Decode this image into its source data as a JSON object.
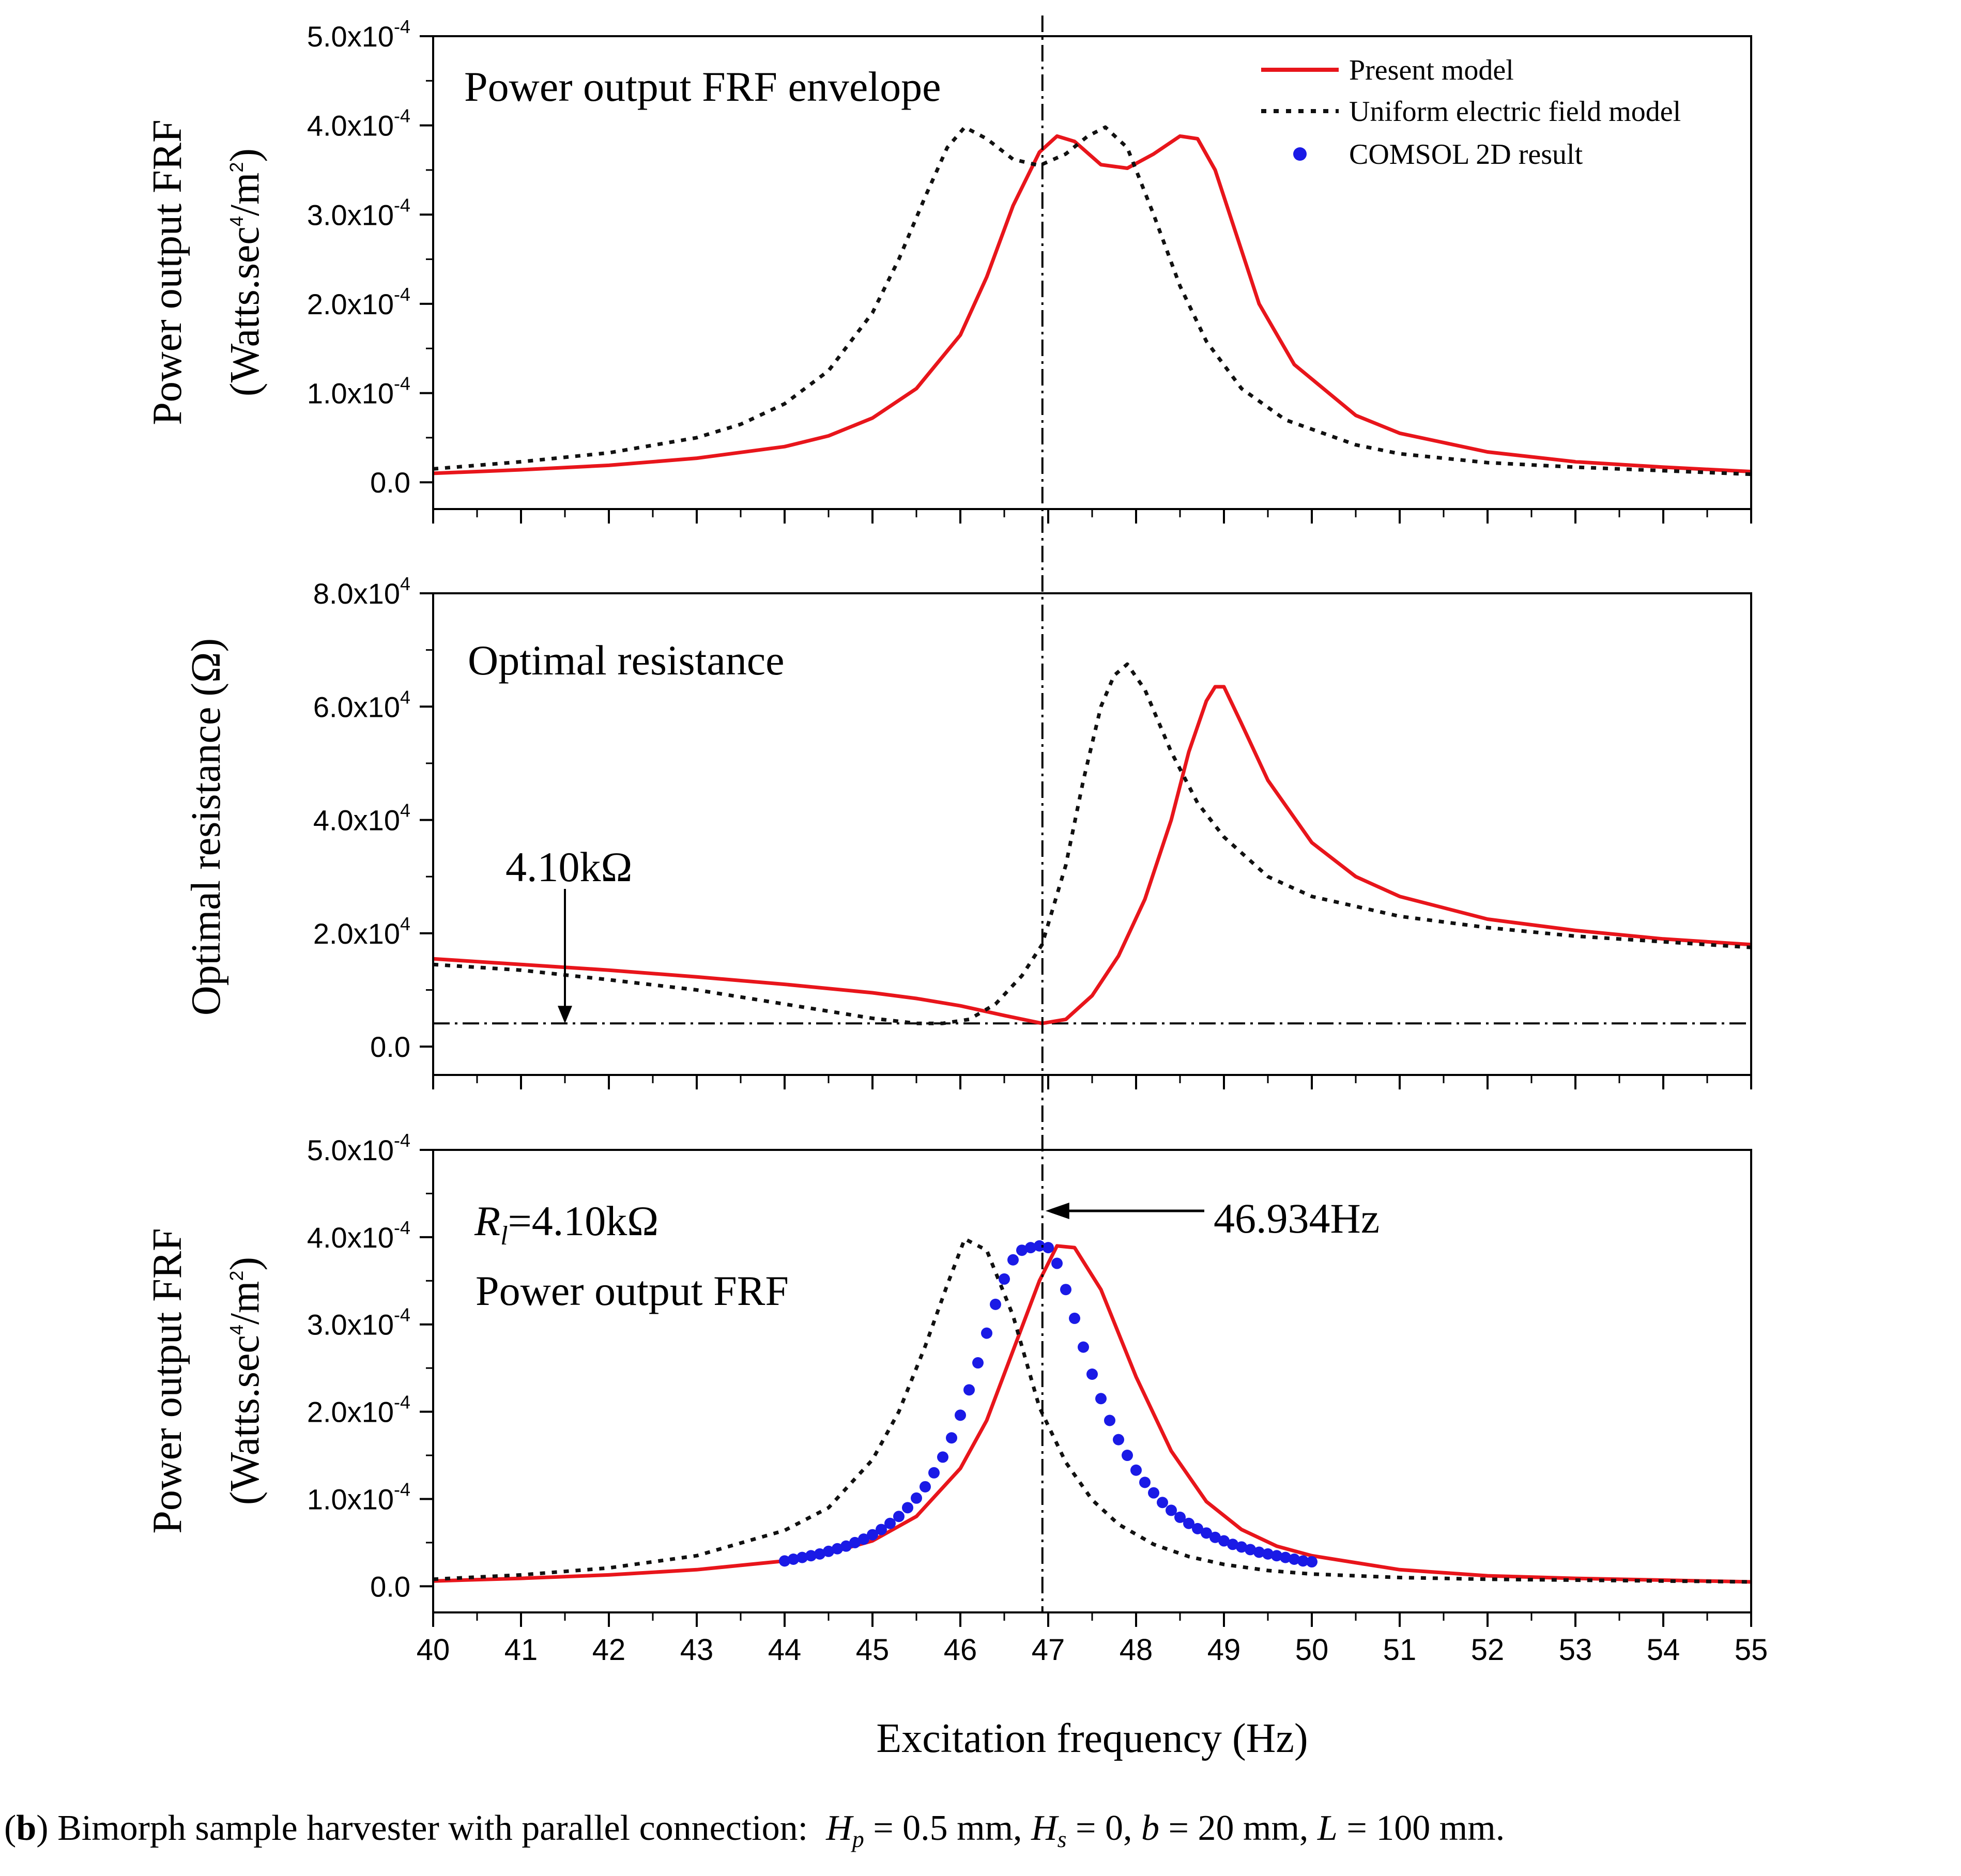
{
  "caption": {
    "label_open": "(",
    "label_letter": "b",
    "label_close": ")",
    "text": "Bimorph sample harvester with parallel connection:",
    "params": [
      {
        "sym": "H",
        "sub": "p",
        "value": " = 0.5 mm,"
      },
      {
        "sym": "H",
        "sub": "s",
        "value": " = 0,"
      },
      {
        "sym": "b",
        "sub": "",
        "value": " = 20 mm,"
      },
      {
        "sym": "L",
        "sub": "",
        "value": " = 100 mm."
      }
    ]
  },
  "legend": {
    "present": "Present model",
    "uniform": "Uniform electric field model",
    "comsol": "COMSOL 2D result"
  },
  "colors": {
    "present": "#e8151b",
    "uniform": "#111111",
    "comsol": "#1a1ae6",
    "axis": "#000000"
  },
  "x_axis": {
    "label": "Excitation frequency (Hz)",
    "range": [
      40,
      55
    ],
    "ticks": [
      "40",
      "41",
      "42",
      "43",
      "44",
      "45",
      "46",
      "47",
      "48",
      "49",
      "50",
      "51",
      "52",
      "53",
      "54",
      "55"
    ]
  },
  "panel1": {
    "annotation": "Power output FRF envelope",
    "ylabel_line1": "Power output FRF",
    "ylabel_line2_a": "(Watts.sec",
    "ylabel_line2_sup1": "4",
    "ylabel_line2_b": "/m",
    "ylabel_line2_sup2": "2",
    "ylabel_line2_c": ")",
    "ticks": [
      {
        "value": 0,
        "base": "0.0",
        "exp": ""
      },
      {
        "value": 0.0001,
        "base": "1.0x10",
        "exp": "-4"
      },
      {
        "value": 0.0002,
        "base": "2.0x10",
        "exp": "-4"
      },
      {
        "value": 0.0003,
        "base": "3.0x10",
        "exp": "-4"
      },
      {
        "value": 0.0004,
        "base": "4.0x10",
        "exp": "-4"
      },
      {
        "value": 0.0005,
        "base": "5.0x10",
        "exp": "-4"
      }
    ]
  },
  "panel2": {
    "annotation": "Optimal resistance",
    "ylabel": "Optimal resistance (Ω)",
    "arrow_label": "4.10kΩ",
    "ticks": [
      {
        "value": 0,
        "base": "0.0",
        "exp": ""
      },
      {
        "value": 20000,
        "base": "2.0x10",
        "exp": "4"
      },
      {
        "value": 40000,
        "base": "4.0x10",
        "exp": "4"
      },
      {
        "value": 60000,
        "base": "6.0x10",
        "exp": "4"
      },
      {
        "value": 80000,
        "base": "8.0x10",
        "exp": "4"
      }
    ]
  },
  "panel3": {
    "annotation_r": "R",
    "annotation_sub": "l",
    "annotation_rest": "=4.10kΩ",
    "annotation2": "Power output FRF",
    "arrow_label": "46.934Hz",
    "ylabel_line1": "Power output FRF",
    "ylabel_line2_a": "(Watts.sec",
    "ylabel_line2_sup1": "4",
    "ylabel_line2_b": "/m",
    "ylabel_line2_sup2": "2",
    "ylabel_line2_c": ")",
    "ticks": [
      {
        "value": 0,
        "base": "0.0",
        "exp": ""
      },
      {
        "value": 0.0001,
        "base": "1.0x10",
        "exp": "-4"
      },
      {
        "value": 0.0002,
        "base": "2.0x10",
        "exp": "-4"
      },
      {
        "value": 0.0003,
        "base": "3.0x10",
        "exp": "-4"
      },
      {
        "value": 0.0004,
        "base": "4.0x10",
        "exp": "-4"
      },
      {
        "value": 0.0005,
        "base": "5.0x10",
        "exp": "-4"
      }
    ]
  },
  "chart_data": [
    {
      "type": "line",
      "title": "Power output FRF envelope",
      "xlabel": "Excitation frequency (Hz)",
      "ylabel": "Power output FRF (Watts.sec4/m2)",
      "xlim": [
        40,
        55
      ],
      "ylim": [
        -3e-05,
        0.0005
      ],
      "vline": 46.934,
      "series": [
        {
          "name": "Present model",
          "style": "solid-red",
          "x": [
            40,
            41,
            42,
            43,
            44,
            44.5,
            45,
            45.5,
            46,
            46.3,
            46.6,
            46.9,
            47.1,
            47.3,
            47.6,
            47.9,
            48.2,
            48.5,
            48.7,
            48.9,
            49.1,
            49.4,
            49.8,
            50.5,
            51,
            52,
            53,
            54,
            55
          ],
          "y": [
            1e-05,
            1.4e-05,
            1.9e-05,
            2.7e-05,
            4e-05,
            5.2e-05,
            7.2e-05,
            0.000105,
            0.000165,
            0.00023,
            0.00031,
            0.00037,
            0.000388,
            0.000382,
            0.000356,
            0.000352,
            0.000368,
            0.000388,
            0.000385,
            0.00035,
            0.00029,
            0.0002,
            0.000132,
            7.5e-05,
            5.5e-05,
            3.4e-05,
            2.3e-05,
            1.7e-05,
            1.2e-05
          ]
        },
        {
          "name": "Uniform electric field model",
          "style": "dotted-black",
          "x": [
            40,
            41,
            42,
            43,
            43.5,
            44,
            44.5,
            45,
            45.3,
            45.6,
            45.85,
            46.05,
            46.3,
            46.6,
            46.9,
            47.2,
            47.45,
            47.65,
            47.9,
            48.2,
            48.5,
            48.8,
            49.2,
            49.7,
            50.5,
            51,
            52,
            53,
            54,
            55
          ],
          "y": [
            1.5e-05,
            2.3e-05,
            3.3e-05,
            5e-05,
            6.5e-05,
            8.8e-05,
            0.000125,
            0.00019,
            0.00025,
            0.00032,
            0.000375,
            0.000398,
            0.000385,
            0.000362,
            0.000355,
            0.000368,
            0.000388,
            0.000398,
            0.000375,
            0.0003,
            0.00022,
            0.000158,
            0.000105,
            7e-05,
            4.2e-05,
            3.2e-05,
            2.2e-05,
            1.7e-05,
            1.3e-05,
            9e-06
          ]
        }
      ]
    },
    {
      "type": "line",
      "title": "Optimal resistance",
      "xlabel": "Excitation frequency (Hz)",
      "ylabel": "Optimal resistance (Ω)",
      "xlim": [
        40,
        55
      ],
      "ylim": [
        -5000,
        80000
      ],
      "vline": 46.934,
      "hline": 4100,
      "annotation_x": 41.5,
      "series": [
        {
          "name": "Present model",
          "style": "solid-red",
          "x": [
            40,
            41,
            42,
            43,
            44,
            45,
            45.5,
            46,
            46.5,
            46.93,
            47.2,
            47.5,
            47.8,
            48.1,
            48.4,
            48.6,
            48.8,
            48.9,
            49.0,
            49.2,
            49.5,
            50,
            50.5,
            51,
            52,
            53,
            54,
            55
          ],
          "y": [
            15500,
            14500,
            13500,
            12300,
            11000,
            9500,
            8500,
            7200,
            5500,
            4100,
            4800,
            9000,
            16000,
            26000,
            40000,
            52000,
            61000,
            63500,
            63500,
            57000,
            47000,
            36000,
            30000,
            26500,
            22500,
            20500,
            19000,
            18000
          ]
        },
        {
          "name": "Uniform electric field model",
          "style": "dotted-black",
          "x": [
            40,
            41,
            42,
            43,
            44,
            45,
            45.5,
            45.8,
            46.1,
            46.4,
            46.7,
            46.93,
            47.2,
            47.4,
            47.6,
            47.75,
            47.9,
            48.1,
            48.4,
            48.7,
            49.0,
            49.5,
            50,
            51,
            52,
            53,
            54,
            55
          ],
          "y": [
            14500,
            13500,
            11800,
            10000,
            7500,
            5000,
            4100,
            4100,
            4800,
            7500,
            12500,
            18000,
            32000,
            47000,
            60000,
            65500,
            67500,
            63000,
            52000,
            43000,
            37000,
            30000,
            26500,
            23000,
            21000,
            19500,
            18500,
            17500
          ]
        }
      ]
    },
    {
      "type": "line",
      "title": "Power output FRF",
      "xlabel": "Excitation frequency (Hz)",
      "ylabel": "Power output FRF (Watts.sec4/m2)",
      "xlim": [
        40,
        55
      ],
      "ylim": [
        -3e-05,
        0.0005
      ],
      "vline": 46.934,
      "series": [
        {
          "name": "Present model",
          "style": "solid-red",
          "x": [
            40,
            41,
            42,
            43,
            44,
            44.5,
            45,
            45.5,
            46,
            46.3,
            46.6,
            46.9,
            47.1,
            47.3,
            47.6,
            48,
            48.4,
            48.8,
            49.2,
            49.6,
            50,
            51,
            52,
            53,
            54,
            55
          ],
          "y": [
            6e-06,
            9e-06,
            1.3e-05,
            1.9e-05,
            2.9e-05,
            3.8e-05,
            5.2e-05,
            8e-05,
            0.000135,
            0.00019,
            0.00027,
            0.00035,
            0.00039,
            0.000388,
            0.00034,
            0.00024,
            0.000155,
            9.7e-05,
            6.5e-05,
            4.6e-05,
            3.5e-05,
            1.9e-05,
            1.2e-05,
            9e-06,
            7e-06,
            5e-06
          ]
        },
        {
          "name": "Uniform electric field model",
          "style": "dotted-black",
          "x": [
            40,
            41,
            42,
            43,
            44,
            44.5,
            45,
            45.3,
            45.6,
            45.85,
            46.05,
            46.3,
            46.6,
            46.9,
            47.2,
            47.5,
            47.8,
            48.2,
            48.6,
            49,
            49.5,
            50,
            51,
            52,
            53,
            54,
            55
          ],
          "y": [
            8e-06,
            1.3e-05,
            2.1e-05,
            3.5e-05,
            6.4e-05,
            9e-05,
            0.000145,
            0.0002,
            0.000275,
            0.000345,
            0.000398,
            0.000385,
            0.00031,
            0.000205,
            0.000142,
            9.9e-05,
            7.1e-05,
            4.8e-05,
            3.4e-05,
            2.5e-05,
            1.8e-05,
            1.4e-05,
            1e-05,
            8e-06,
            7e-06,
            6e-06,
            5e-06
          ]
        },
        {
          "name": "COMSOL 2D result",
          "style": "dots-blue",
          "x": [
            44,
            44.1,
            44.2,
            44.3,
            44.4,
            44.5,
            44.6,
            44.7,
            44.8,
            44.9,
            45,
            45.1,
            45.2,
            45.3,
            45.4,
            45.5,
            45.6,
            45.7,
            45.8,
            45.9,
            46,
            46.1,
            46.2,
            46.3,
            46.4,
            46.5,
            46.6,
            46.7,
            46.8,
            46.9,
            47,
            47.1,
            47.2,
            47.3,
            47.4,
            47.5,
            47.6,
            47.7,
            47.8,
            47.9,
            48,
            48.1,
            48.2,
            48.3,
            48.4,
            48.5,
            48.6,
            48.7,
            48.8,
            48.9,
            49,
            49.1,
            49.2,
            49.3,
            49.4,
            49.5,
            49.6,
            49.7,
            49.8,
            49.9,
            50
          ],
          "y": [
            2.9e-05,
            3.1e-05,
            3.3e-05,
            3.5e-05,
            3.7e-05,
            4e-05,
            4.3e-05,
            4.6e-05,
            5e-05,
            5.4e-05,
            5.9e-05,
            6.5e-05,
            7.2e-05,
            8e-05,
            9e-05,
            0.000101,
            0.000114,
            0.00013,
            0.000148,
            0.00017,
            0.000196,
            0.000225,
            0.000256,
            0.00029,
            0.000323,
            0.000352,
            0.000374,
            0.000385,
            0.000388,
            0.00039,
            0.000388,
            0.00037,
            0.00034,
            0.000307,
            0.000274,
            0.000243,
            0.000215,
            0.00019,
            0.000168,
            0.00015,
            0.000133,
            0.000119,
            0.000107,
            9.6e-05,
            8.7e-05,
            7.9e-05,
            7.2e-05,
            6.6e-05,
            6.1e-05,
            5.6e-05,
            5.2e-05,
            4.8e-05,
            4.5e-05,
            4.2e-05,
            3.9e-05,
            3.7e-05,
            3.5e-05,
            3.3e-05,
            3.1e-05,
            2.9e-05,
            2.8e-05
          ]
        }
      ]
    }
  ]
}
